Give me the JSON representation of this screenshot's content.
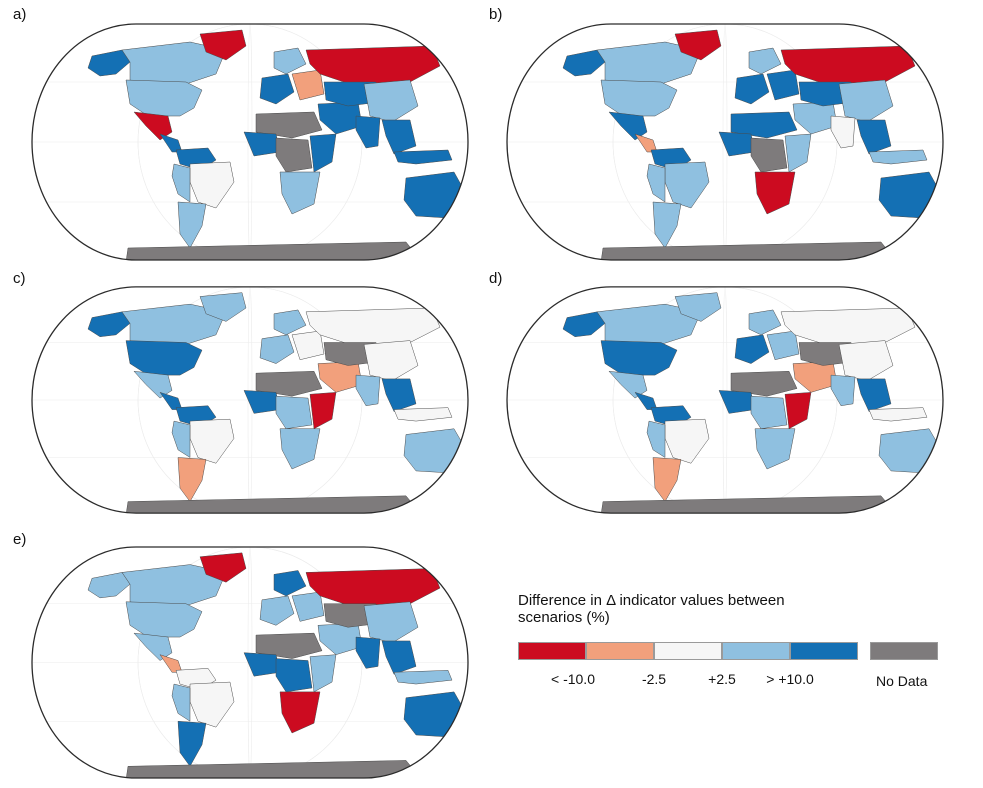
{
  "panels": [
    {
      "id": "a",
      "label": "a)",
      "scheme": "a"
    },
    {
      "id": "b",
      "label": "b)",
      "scheme": "b"
    },
    {
      "id": "c",
      "label": "c)",
      "scheme": "c"
    },
    {
      "id": "d",
      "label": "d)",
      "scheme": "d"
    },
    {
      "id": "e",
      "label": "e)",
      "scheme": "e"
    }
  ],
  "legend": {
    "title_line1": "Difference in Δ indicator values between",
    "title_line2": "scenarios (%)",
    "classes": [
      {
        "key": "dr",
        "color": "#cc0b20"
      },
      {
        "key": "lr",
        "color": "#f2a07c"
      },
      {
        "key": "w",
        "color": "#f6f6f6"
      },
      {
        "key": "lb",
        "color": "#8fc0e0"
      },
      {
        "key": "db",
        "color": "#1470b4"
      }
    ],
    "nodata_color": "#7e7b7c",
    "tick_labels": [
      "< -10.0",
      "-2.5",
      "+2.5",
      "> +10.0"
    ],
    "nodata_label": "No Data"
  }
}
